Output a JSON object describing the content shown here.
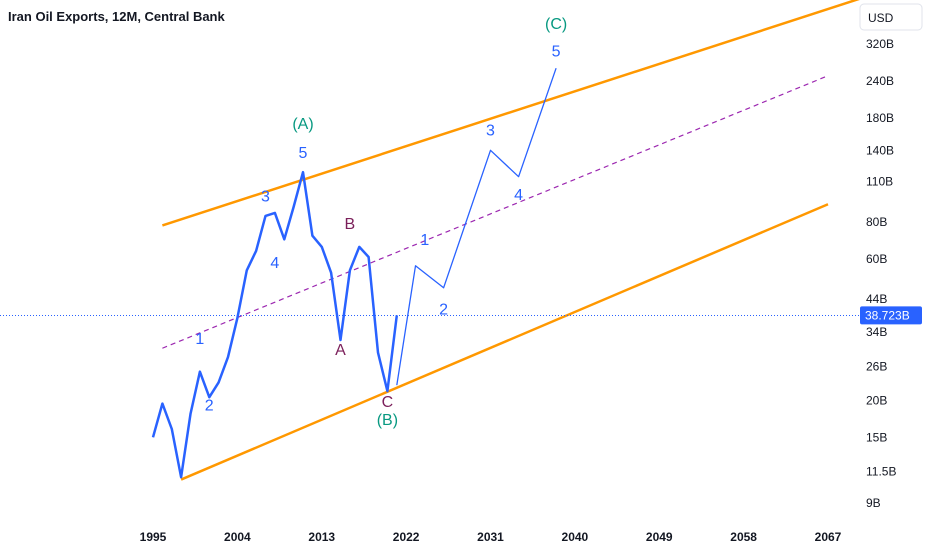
{
  "title": "Iran Oil Exports, 12M, Central Bank",
  "currency": "USD",
  "current_price_label": "38.723B",
  "chart_data": {
    "type": "line",
    "title": "Iran Oil Exports, 12M, Central Bank",
    "y_scale": "log",
    "ylim_billions": [
      8.5,
      400
    ],
    "xlim_years": [
      1994,
      2068
    ],
    "y_tick_labels": [
      "320B",
      "240B",
      "180B",
      "140B",
      "110B",
      "80B",
      "60B",
      "44B",
      "34B",
      "26B",
      "20B",
      "15B",
      "11.5B",
      "9B"
    ],
    "y_tick_values": [
      320,
      240,
      180,
      140,
      110,
      80,
      60,
      44,
      34,
      26,
      20,
      15,
      11.5,
      9
    ],
    "x_tick_labels": [
      "1995",
      "2004",
      "2013",
      "2022",
      "2031",
      "2040",
      "2049",
      "2058",
      "2067"
    ],
    "x_tick_values": [
      1995,
      2004,
      2013,
      2022,
      2031,
      2040,
      2049,
      2058,
      2067
    ],
    "current_value": 38.723,
    "series": [
      {
        "values": [
          [
            1995,
            15
          ],
          [
            1996,
            19.5
          ],
          [
            1997,
            16
          ],
          [
            1998,
            11
          ],
          [
            1999,
            18
          ],
          [
            2000,
            25
          ],
          [
            2001,
            20.5
          ],
          [
            2002,
            23
          ],
          [
            2003,
            28
          ],
          [
            2004,
            38
          ],
          [
            2005,
            55
          ],
          [
            2006,
            64
          ],
          [
            2007,
            84
          ],
          [
            2008,
            86
          ],
          [
            2009,
            70
          ],
          [
            2010,
            90
          ],
          [
            2011,
            118
          ],
          [
            2012,
            72
          ],
          [
            2013,
            66
          ],
          [
            2014,
            54
          ],
          [
            2015,
            32
          ],
          [
            2016,
            55
          ],
          [
            2017,
            66
          ],
          [
            2018,
            61
          ],
          [
            2019,
            29
          ],
          [
            2020,
            21.5
          ],
          [
            2021,
            38.723
          ]
        ]
      },
      {
        "values": [
          [
            2021,
            22.5
          ],
          [
            2023,
            57
          ],
          [
            2026,
            48
          ],
          [
            2031,
            140
          ],
          [
            2034,
            114
          ],
          [
            2038,
            265
          ]
        ]
      }
    ],
    "channel": {
      "upper": [
        [
          1996,
          78
        ],
        [
          2076,
          520
        ]
      ],
      "lower": [
        [
          1998,
          10.8
        ],
        [
          2067,
          92
        ]
      ],
      "mid": [
        [
          1996,
          30
        ],
        [
          2067,
          250
        ]
      ]
    },
    "annotations": [
      {
        "text": "1",
        "x": 2000,
        "y": 31,
        "color": "blue"
      },
      {
        "text": "2",
        "x": 2001,
        "y": 18.5,
        "color": "blue"
      },
      {
        "text": "3",
        "x": 2007,
        "y": 94,
        "color": "blue"
      },
      {
        "text": "4",
        "x": 2008,
        "y": 56,
        "color": "blue"
      },
      {
        "text": "5",
        "x": 2011,
        "y": 132,
        "color": "blue"
      },
      {
        "text": "(A)",
        "x": 2011,
        "y": 165,
        "color": "teal"
      },
      {
        "text": "B",
        "x": 2016,
        "y": 76,
        "color": "purple"
      },
      {
        "text": "A",
        "x": 2015,
        "y": 28.5,
        "color": "purple"
      },
      {
        "text": "C",
        "x": 2020,
        "y": 19,
        "color": "purple"
      },
      {
        "text": "(B)",
        "x": 2020,
        "y": 16.5,
        "color": "teal"
      },
      {
        "text": "1",
        "x": 2024,
        "y": 67,
        "color": "blue"
      },
      {
        "text": "2",
        "x": 2026,
        "y": 39,
        "color": "blue"
      },
      {
        "text": "3",
        "x": 2031,
        "y": 157,
        "color": "blue"
      },
      {
        "text": "4",
        "x": 2034,
        "y": 95,
        "color": "blue"
      },
      {
        "text": "5",
        "x": 2038,
        "y": 290,
        "color": "blue"
      },
      {
        "text": "(C)",
        "x": 2038,
        "y": 360,
        "color": "teal"
      }
    ],
    "colors": {
      "series": "#2962ff",
      "channel": "#ff9800",
      "mid": "#9c27b0",
      "current": "#2962ff"
    }
  }
}
